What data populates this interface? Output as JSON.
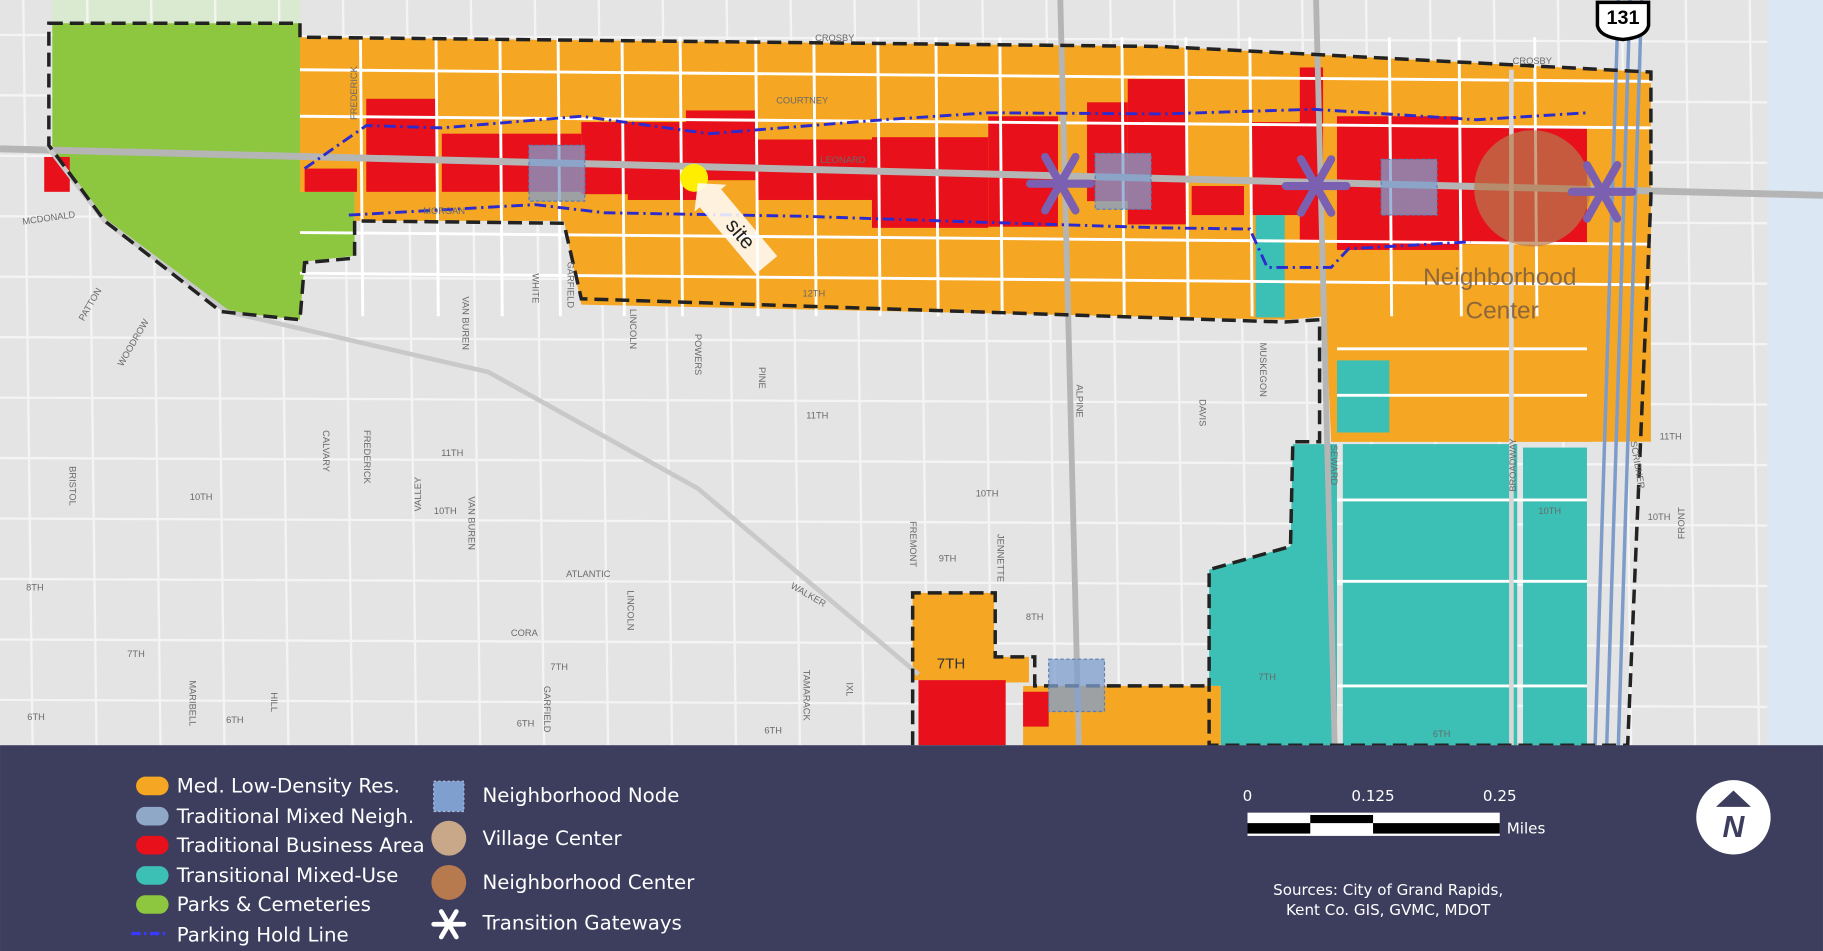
{
  "map": {
    "highway_shield": "131",
    "site_label": "site",
    "center_label": [
      "Neighborhood",
      "Center"
    ],
    "big_street_label": "7TH"
  },
  "streets": [
    "CROSBY",
    "CROSBY",
    "COURTNEY",
    "LEONARD",
    "MORGAN",
    "MCDONALD",
    "12TH",
    "11TH",
    "11TH",
    "11TH",
    "10TH",
    "10TH",
    "10TH",
    "10TH",
    "10TH",
    "ATLANTIC",
    "CORA",
    "7TH",
    "7TH",
    "7TH",
    "6TH",
    "6TH",
    "6TH",
    "6TH",
    "6TH",
    "8TH",
    "8TH",
    "9TH",
    "WALKER",
    "ALPINE",
    "SEWARD",
    "BROADWAY",
    "SCRIBNER",
    "FRONT",
    "VALLEY",
    "PATTON",
    "WOODROW",
    "BRISTOL",
    "CALVARY",
    "FREDERICK",
    "VAN BUREN",
    "VAN BUREN",
    "WHITE",
    "GARFIELD",
    "LINCOLN",
    "POWERS",
    "PINE",
    "LINCOLN",
    "GARFIELD",
    "TAMARACK",
    "IXL",
    "FREMONT",
    "JENNETTE",
    "MUSKEGON",
    "DAVIS",
    "MARIBELL",
    "HILL",
    "FREDERICK"
  ],
  "legend": {
    "zones": [
      "Med. Low-Density Res.",
      "Traditional Mixed Neigh.",
      "Traditional Business Area",
      "Transitional Mixed-Use",
      "Parks & Cemeteries",
      "Parking Hold Line"
    ],
    "features": [
      "Neighborhood Node",
      "Village Center",
      "Neighborhood Center",
      "Transition Gateways"
    ]
  },
  "scale": {
    "ticks": [
      "0",
      "0.125",
      "0.25"
    ],
    "unit": "Miles"
  },
  "sources": [
    "Sources: City of Grand Rapids,",
    "Kent Co. GIS, GVMC, MDOT"
  ],
  "north": "N"
}
